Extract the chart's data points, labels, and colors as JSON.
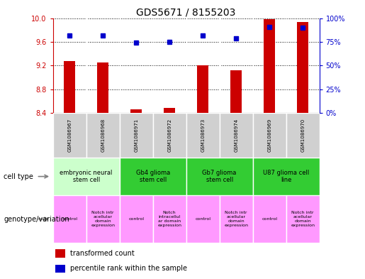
{
  "title": "GDS5671 / 8155203",
  "samples": [
    "GSM1086967",
    "GSM1086968",
    "GSM1086971",
    "GSM1086972",
    "GSM1086973",
    "GSM1086974",
    "GSM1086969",
    "GSM1086970"
  ],
  "transformed_count": [
    9.28,
    9.25,
    8.46,
    8.48,
    9.2,
    9.12,
    9.98,
    9.94
  ],
  "percentile_rank": [
    82,
    82,
    74,
    75,
    82,
    79,
    91,
    90
  ],
  "ylim_left": [
    8.4,
    10.0
  ],
  "ylim_right": [
    0,
    100
  ],
  "yticks_left": [
    8.4,
    8.8,
    9.2,
    9.6,
    10.0
  ],
  "yticks_right": [
    0,
    25,
    50,
    75,
    100
  ],
  "bar_color": "#cc0000",
  "dot_color": "#0000cc",
  "bar_bottom": 8.4,
  "bar_width": 0.35,
  "cell_type_groups": [
    {
      "label": "embryonic neural\nstem cell",
      "start": 0,
      "end": 2,
      "color": "#ccffcc"
    },
    {
      "label": "Gb4 glioma\nstem cell",
      "start": 2,
      "end": 4,
      "color": "#33cc33"
    },
    {
      "label": "Gb7 glioma\nstem cell",
      "start": 4,
      "end": 6,
      "color": "#33cc33"
    },
    {
      "label": "U87 glioma cell\nline",
      "start": 6,
      "end": 8,
      "color": "#33cc33"
    }
  ],
  "genotype_groups": [
    {
      "label": "control",
      "start": 0,
      "end": 1
    },
    {
      "label": "Notch intr\nacellular\ndomain\nexpression",
      "start": 1,
      "end": 2
    },
    {
      "label": "control",
      "start": 2,
      "end": 3
    },
    {
      "label": "Notch\nintracellul\nar domain\nexpression",
      "start": 3,
      "end": 4
    },
    {
      "label": "control",
      "start": 4,
      "end": 5
    },
    {
      "label": "Notch intr\nacellular\ndomain\nexpression",
      "start": 5,
      "end": 6
    },
    {
      "label": "control",
      "start": 6,
      "end": 7
    },
    {
      "label": "Notch intr\nacellular\ndomain\nexpression",
      "start": 7,
      "end": 8
    }
  ],
  "genotype_color": "#ff99ff",
  "sample_row_color": "#d0d0d0",
  "left_axis_color": "#cc0000",
  "right_axis_color": "#0000cc",
  "title_fontsize": 10,
  "tick_fontsize": 7,
  "sample_fontsize": 5,
  "cell_type_fontsize": 6,
  "geno_fontsize": 4.5,
  "label_fontsize": 7,
  "legend_fontsize": 7
}
